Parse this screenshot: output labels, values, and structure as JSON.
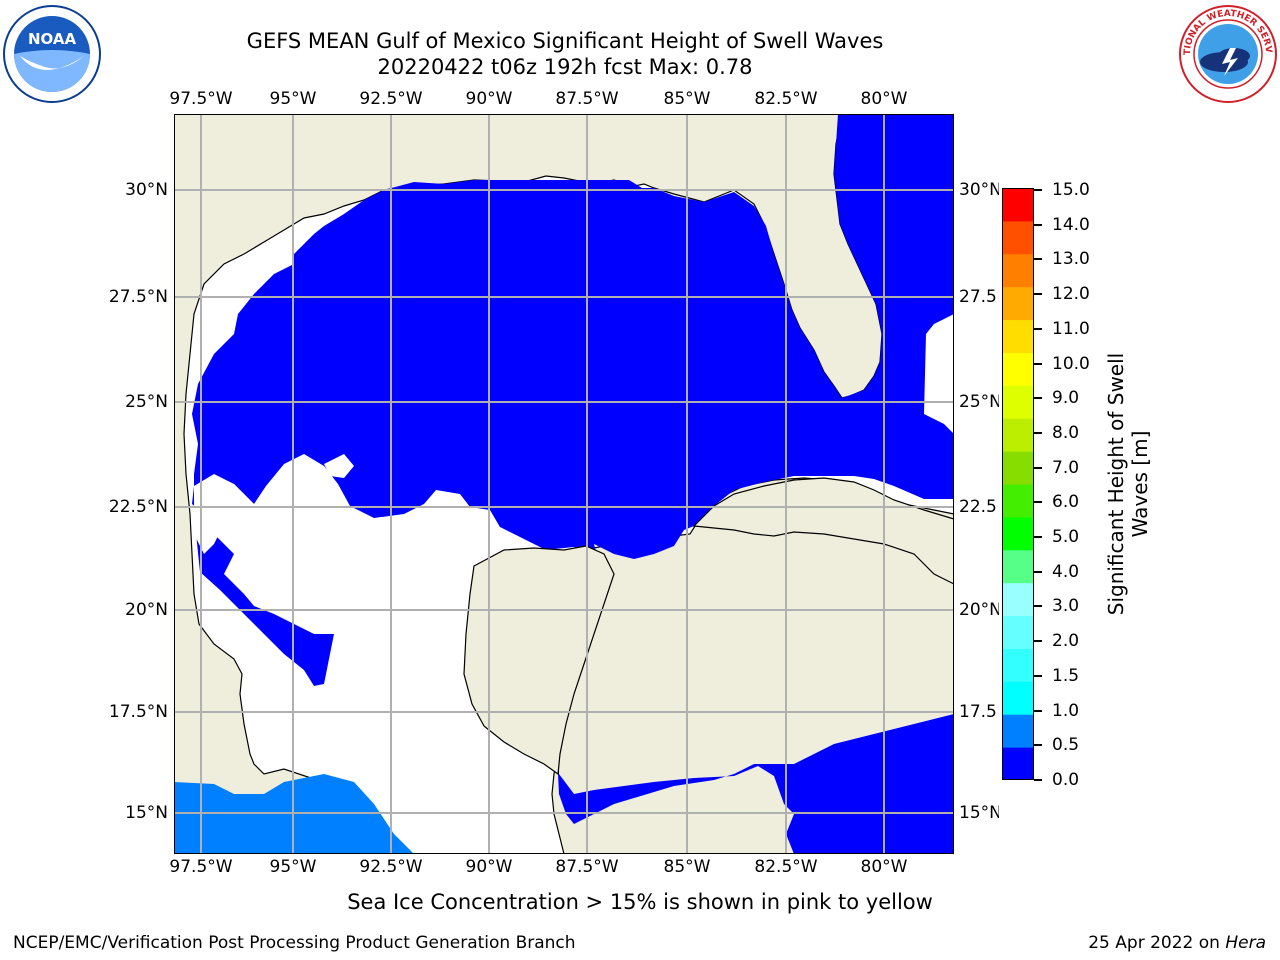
{
  "header": {
    "title_line1": "GEFS MEAN Gulf of Mexico Significant Height of Swell Waves",
    "title_line2": "20220422 t06z 192h fcst   Max: 0.78"
  },
  "logos": {
    "left": "NOAA",
    "right": "NATIONAL WEATHER SERVICE"
  },
  "axes": {
    "lon_labels": [
      "97.5°W",
      "95°W",
      "92.5°W",
      "90°W",
      "87.5°W",
      "85°W",
      "82.5°W",
      "80°W"
    ],
    "lat_labels": [
      "30°N",
      "27.5°N",
      "25°N",
      "22.5°N",
      "20°N",
      "17.5°N",
      "15°N"
    ],
    "lat_labels_right": [
      "30°N",
      "27.5",
      "25°N",
      "22.5",
      "20°N",
      "17.5",
      "15°N"
    ]
  },
  "colorbar": {
    "label": "Significant Height of Swell Waves [m]",
    "label_line1": "Significant Height of Swell",
    "label_line2": "Waves [m]",
    "ticks": [
      "15.0",
      "14.0",
      "13.0",
      "12.0",
      "11.0",
      "10.0",
      "9.0",
      "8.0",
      "7.0",
      "6.0",
      "5.0",
      "4.0",
      "3.0",
      "2.0",
      "1.5",
      "1.0",
      "0.5",
      "0.0"
    ],
    "colors_bottom_to_top": [
      "#0000ff",
      "#0080ff",
      "#00ffff",
      "#33ffff",
      "#66ffff",
      "#99ffff",
      "#55ff88",
      "#00ff00",
      "#44ee00",
      "#88dd00",
      "#bbee00",
      "#ddff00",
      "#ffff00",
      "#ffdd00",
      "#ffaa00",
      "#ff8000",
      "#ff5000",
      "#ff0000"
    ]
  },
  "colors": {
    "land": "#efeddc",
    "ocean_low": "#0000ff",
    "ocean_mid": "#0080ff",
    "no_data": "#ffffff",
    "grid": "#b0b0b0"
  },
  "notes": {
    "ice": "Sea Ice Concentration > 15% is shown in pink to yellow"
  },
  "footer": {
    "left": "NCEP/EMC/Verification Post Processing Product Generation Branch",
    "date": "25 Apr 2022 on ",
    "host": "Hera"
  }
}
